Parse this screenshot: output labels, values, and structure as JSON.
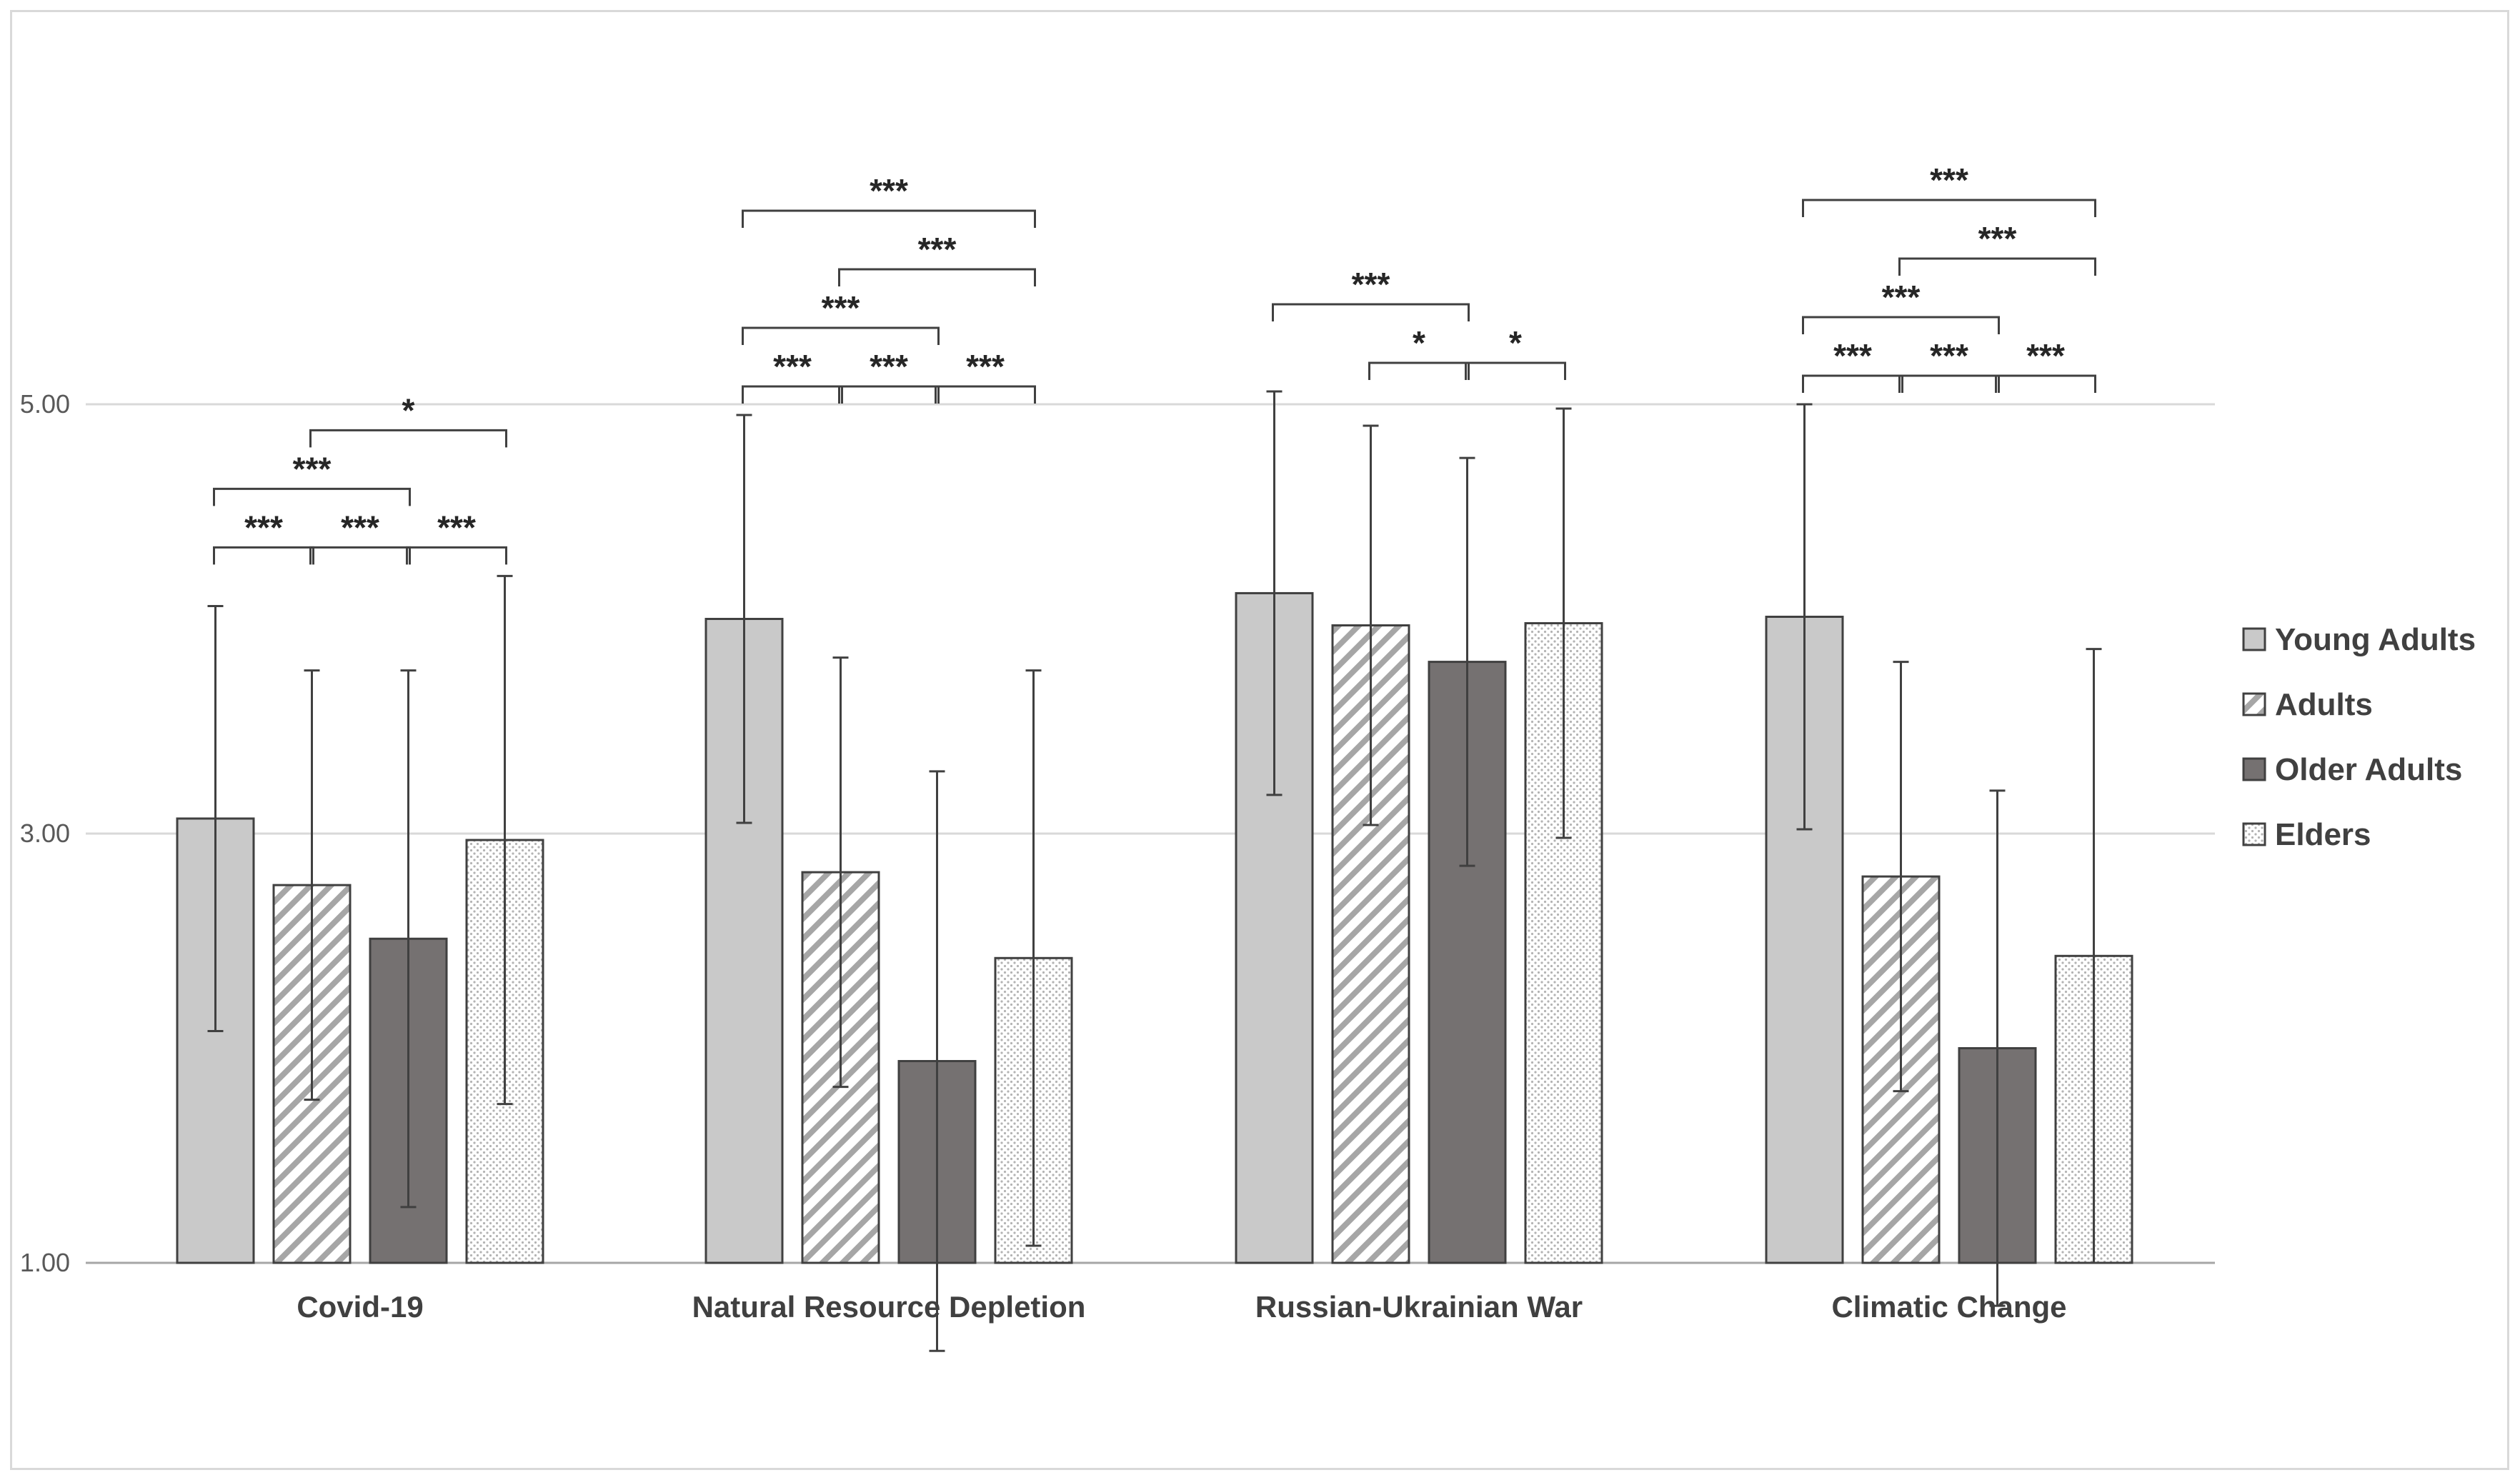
{
  "chart_data": {
    "type": "bar",
    "title": "",
    "xlabel": "",
    "ylabel": "",
    "ylim": [
      1,
      6.5
    ],
    "yticks": [
      1.0,
      3.0,
      5.0
    ],
    "ytick_labels": [
      "1.00",
      "3.00",
      "5.00"
    ],
    "grid": true,
    "legend_position": "right",
    "categories": [
      "Covid-19",
      "Natural Resource Depletion",
      "Russian-Ukrainian War",
      "Climatic Change"
    ],
    "series": [
      {
        "name": "Young Adults",
        "pattern": "solid-light",
        "color": "#c9c9c9",
        "values": [
          3.07,
          4.0,
          4.12,
          4.01
        ],
        "errors": [
          0.99,
          0.95,
          0.94,
          0.99
        ]
      },
      {
        "name": "Adults",
        "pattern": "diagonal-stripes",
        "color": "#a6a6a6",
        "values": [
          2.76,
          2.82,
          3.97,
          2.8
        ],
        "errors": [
          1.0,
          1.0,
          0.93,
          1.0
        ]
      },
      {
        "name": "Older Adults",
        "pattern": "solid-dark",
        "color": "#757171",
        "values": [
          2.51,
          1.94,
          3.8,
          2.0
        ],
        "errors": [
          1.25,
          1.35,
          0.95,
          1.2
        ]
      },
      {
        "name": "Elders",
        "pattern": "dotted",
        "color": "#bfbfbf",
        "values": [
          2.97,
          2.42,
          3.98,
          2.43
        ],
        "errors": [
          1.23,
          1.34,
          1.0,
          1.43
        ]
      }
    ],
    "significance": [
      {
        "category": 0,
        "from": 0,
        "to": 1,
        "label": "***",
        "level": 0
      },
      {
        "category": 0,
        "from": 1,
        "to": 2,
        "label": "***",
        "level": 0
      },
      {
        "category": 0,
        "from": 2,
        "to": 3,
        "label": "***",
        "level": 0
      },
      {
        "category": 0,
        "from": 0,
        "to": 2,
        "label": "***",
        "level": 1
      },
      {
        "category": 0,
        "from": 1,
        "to": 3,
        "label": "*",
        "level": 2
      },
      {
        "category": 1,
        "from": 0,
        "to": 1,
        "label": "***",
        "level": 0
      },
      {
        "category": 1,
        "from": 1,
        "to": 2,
        "label": "***",
        "level": 0
      },
      {
        "category": 1,
        "from": 2,
        "to": 3,
        "label": "***",
        "level": 0
      },
      {
        "category": 1,
        "from": 0,
        "to": 2,
        "label": "***",
        "level": 1
      },
      {
        "category": 1,
        "from": 1,
        "to": 3,
        "label": "***",
        "level": 2
      },
      {
        "category": 1,
        "from": 0,
        "to": 3,
        "label": "***",
        "level": 3
      },
      {
        "category": 2,
        "from": 1,
        "to": 2,
        "label": "*",
        "level": 0
      },
      {
        "category": 2,
        "from": 2,
        "to": 3,
        "label": "*",
        "level": 0
      },
      {
        "category": 2,
        "from": 0,
        "to": 2,
        "label": "***",
        "level": 1
      },
      {
        "category": 3,
        "from": 0,
        "to": 1,
        "label": "***",
        "level": 0
      },
      {
        "category": 3,
        "from": 1,
        "to": 2,
        "label": "***",
        "level": 0
      },
      {
        "category": 3,
        "from": 2,
        "to": 3,
        "label": "***",
        "level": 0
      },
      {
        "category": 3,
        "from": 0,
        "to": 2,
        "label": "***",
        "level": 1
      },
      {
        "category": 3,
        "from": 1,
        "to": 3,
        "label": "***",
        "level": 2
      },
      {
        "category": 3,
        "from": 0,
        "to": 3,
        "label": "***",
        "level": 3
      }
    ]
  }
}
